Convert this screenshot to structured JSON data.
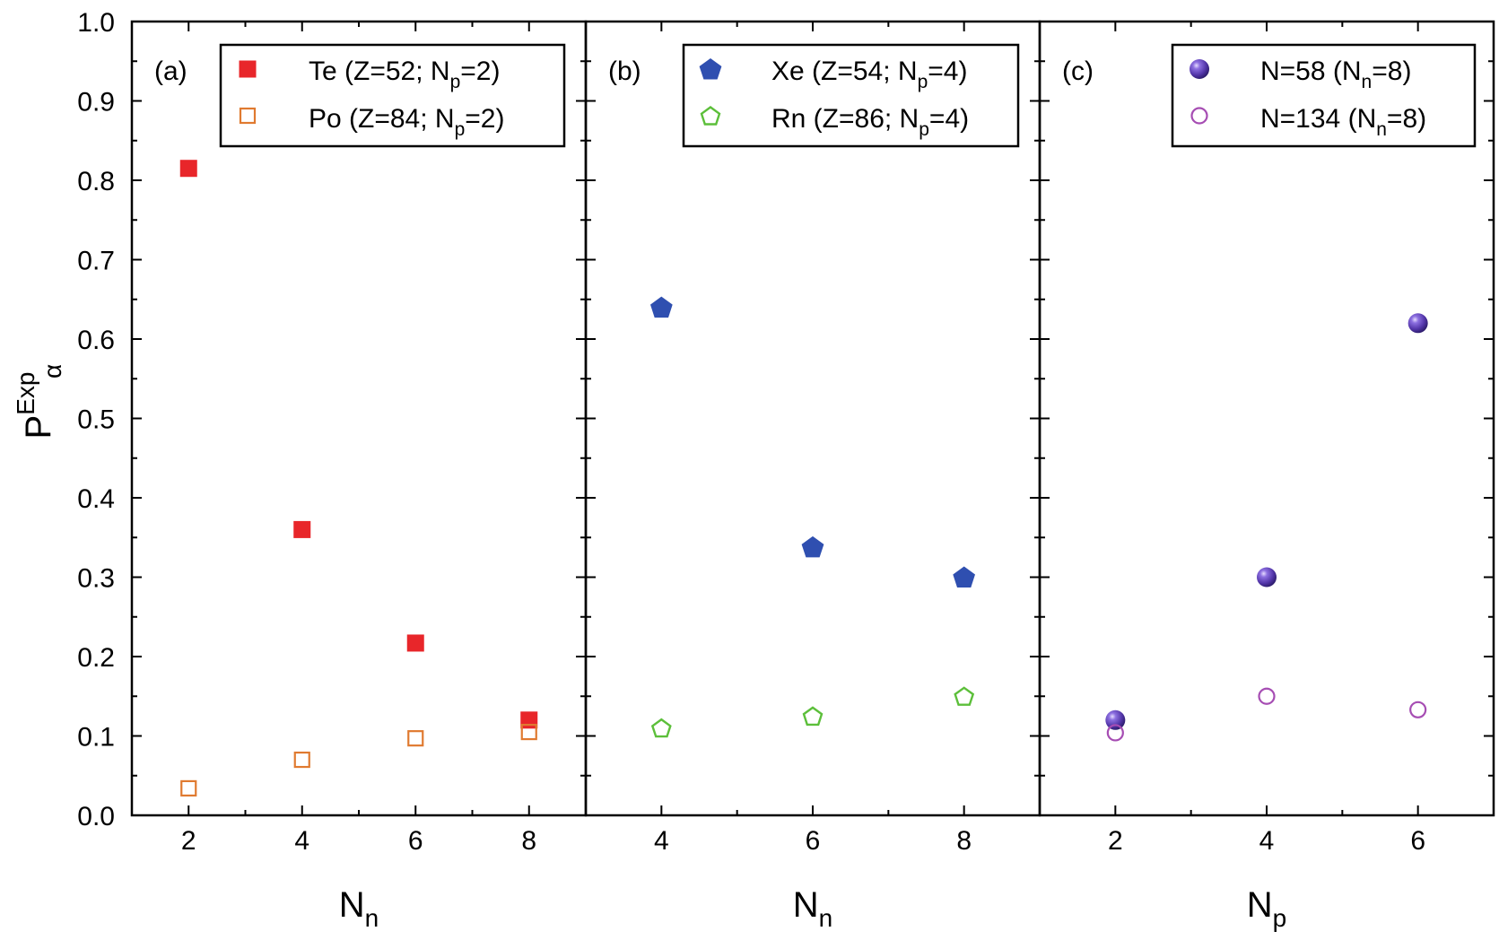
{
  "chart_data": [
    {
      "type": "scatter",
      "panel_label": "(a)",
      "xlabel": "N",
      "xlabel_sub": "n",
      "xlim": [
        1,
        9
      ],
      "xticks": [
        "2",
        "4",
        "6",
        "8"
      ],
      "ylim": [
        0.0,
        1.0
      ],
      "series": [
        {
          "name": "Te",
          "legend_parts": [
            "Te  (Z=52; N",
            "p",
            "=2)"
          ],
          "marker": "square-filled",
          "color": "#e8262a",
          "x": [
            2,
            4,
            6,
            8
          ],
          "y": [
            0.815,
            0.36,
            0.217,
            0.12
          ]
        },
        {
          "name": "Po",
          "legend_parts": [
            "Po  (Z=84; N",
            "p",
            "=2)"
          ],
          "marker": "square-open",
          "color": "#e07a30",
          "x": [
            2,
            4,
            6,
            8
          ],
          "y": [
            0.034,
            0.07,
            0.097,
            0.105
          ]
        }
      ]
    },
    {
      "type": "scatter",
      "panel_label": "(b)",
      "xlabel": "N",
      "xlabel_sub": "n",
      "xlim": [
        3,
        9
      ],
      "xticks": [
        "4",
        "6",
        "8"
      ],
      "ylim": [
        0.0,
        1.0
      ],
      "series": [
        {
          "name": "Xe",
          "legend_parts": [
            "Xe (Z=54; N",
            "p",
            "=4)"
          ],
          "marker": "pentagon-filled",
          "color": "#2f4fb0",
          "x": [
            4,
            6,
            8
          ],
          "y": [
            0.64,
            0.338,
            0.3
          ]
        },
        {
          "name": "Rn",
          "legend_parts": [
            "Rn (Z=86; N",
            "p",
            "=4)"
          ],
          "marker": "pentagon-open",
          "color": "#5cbf3a",
          "x": [
            4,
            6,
            8
          ],
          "y": [
            0.11,
            0.125,
            0.15
          ]
        }
      ]
    },
    {
      "type": "scatter",
      "panel_label": "(c)",
      "xlabel": "N",
      "xlabel_sub": "p",
      "xlim": [
        1,
        7
      ],
      "xticks": [
        "2",
        "4",
        "6"
      ],
      "ylim": [
        0.0,
        1.0
      ],
      "series": [
        {
          "name": "N=58",
          "legend_parts": [
            "N=58   (N",
            "n",
            "=8)"
          ],
          "marker": "sphere-filled",
          "color": "#5c3fae",
          "x": [
            2,
            4,
            6
          ],
          "y": [
            0.12,
            0.3,
            0.62
          ]
        },
        {
          "name": "N=134",
          "legend_parts": [
            "N=134 (N",
            "n",
            "=8)"
          ],
          "marker": "circle-open",
          "color": "#a64db3",
          "x": [
            2,
            4,
            6
          ],
          "y": [
            0.104,
            0.15,
            0.133
          ]
        }
      ]
    }
  ],
  "ylabel": {
    "main": "P",
    "sup": "Exp",
    "sub": "α"
  },
  "yticks": [
    "0.0",
    "0.1",
    "0.2",
    "0.3",
    "0.4",
    "0.5",
    "0.6",
    "0.7",
    "0.8",
    "0.9",
    "1.0"
  ]
}
